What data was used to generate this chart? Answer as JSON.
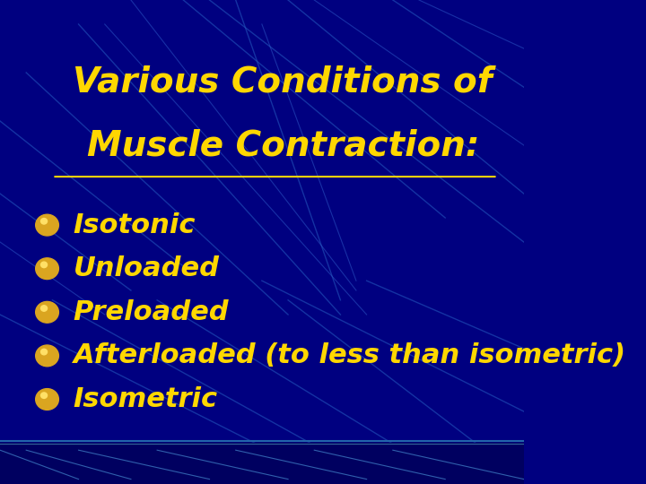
{
  "title_line1": "Various Conditions of",
  "title_line2": "Muscle Contraction:",
  "bullet_items": [
    "Isotonic",
    "Unloaded",
    "Preloaded",
    "Afterloaded (to less than isometric)",
    "Isometric"
  ],
  "bg_color": "#000080",
  "title_color": "#FFD700",
  "bullet_color": "#FFD700",
  "bullet_dot_color": "#DAA520",
  "footer_line_color": "#4682B4",
  "title_fontsize": 28,
  "bullet_fontsize": 22,
  "figsize": [
    7.2,
    5.4
  ],
  "dpi": 100
}
